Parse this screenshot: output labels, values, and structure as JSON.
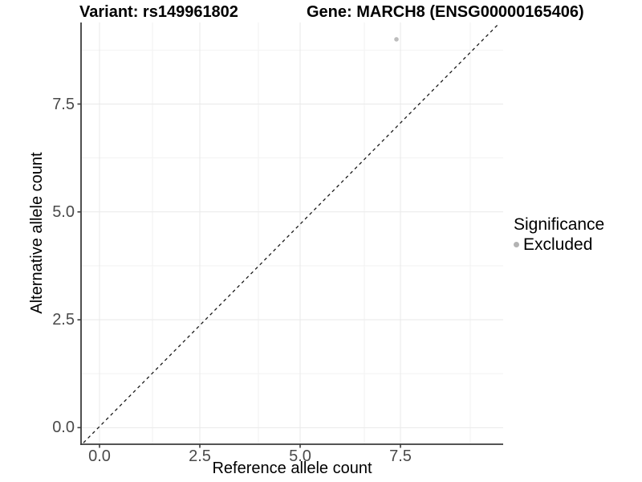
{
  "titles": {
    "left": "Variant: rs149961802",
    "right": "Gene: MARCH8 (ENSG00000165406)"
  },
  "chart_data": {
    "type": "scatter",
    "title_left": "Variant: rs149961802",
    "title_right": "Gene: MARCH8 (ENSG00000165406)",
    "xlabel": "Reference allele count",
    "ylabel": "Alternative allele count",
    "xlim": [
      -0.46,
      10.06
    ],
    "ylim": [
      -0.385,
      9.39
    ],
    "x_major_ticks": [
      0,
      2.5,
      5,
      7.5
    ],
    "x_tick_labels": [
      "0.0",
      "2.5",
      "5.0",
      "7.5"
    ],
    "x_minor_ticks": [
      1.32,
      3.96,
      6.6,
      9.24
    ],
    "y_major_ticks": [
      0,
      2.5,
      5,
      7.5
    ],
    "y_tick_labels": [
      "0.0",
      "2.5",
      "5.0",
      "7.5"
    ],
    "y_minor_ticks": [
      1.25,
      3.75,
      6.25,
      8.75
    ],
    "grid": true,
    "points": [
      {
        "x": 7.4,
        "y": 9.0,
        "significance": "Excluded"
      }
    ],
    "reference_line": {
      "meaning": "y = x identity line",
      "slope": 1,
      "intercept": 0,
      "x1": -0.4,
      "y1": -0.35,
      "x2": 9.96,
      "y2": 9.37,
      "style": "dashed"
    },
    "legend_position": "right"
  },
  "legend": {
    "title": "Significance",
    "items": [
      {
        "label": "Excluded",
        "color": "#b3b3b3"
      }
    ]
  },
  "colors": {
    "background": "#ffffff",
    "point": "#bdbdbd",
    "axis_line": "#3c3c3c",
    "tick_mark": "#3c3c3c",
    "grid_major": "#e9e9e9",
    "grid_minor": "#f2f2f2",
    "tick_text": "#4a4a4a",
    "text": "#000000",
    "reference_line": "#1a1a1a"
  }
}
